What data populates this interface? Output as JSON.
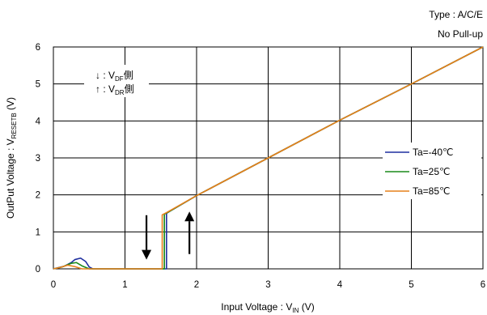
{
  "chart_data": {
    "type": "line",
    "title": "",
    "annotation_top_right": [
      "Type : A/C/E",
      "No Pull-up"
    ],
    "xlabel": "Input Voltage : V",
    "xlabel_sub": "IN",
    "xlabel_unit": " (V)",
    "ylabel": "OutPut Voltage : V",
    "ylabel_sub": "RESETB",
    "ylabel_unit": " (V)",
    "xlim": [
      0,
      6
    ],
    "ylim": [
      0,
      6
    ],
    "xticks": [
      "0",
      "1",
      "2",
      "3",
      "4",
      "5",
      "6"
    ],
    "yticks": [
      "0",
      "1",
      "2",
      "3",
      "4",
      "5",
      "6"
    ],
    "grid": true,
    "legend_position": "right",
    "direction_notes": [
      {
        "arrow": "↓",
        "prefix": " : V",
        "sub": "DF",
        "suffix": "側"
      },
      {
        "arrow": "↑",
        "prefix": " : V",
        "sub": "DR",
        "suffix": "側"
      }
    ],
    "series": [
      {
        "name": "Ta=-40℃",
        "color": "#1f2f9f",
        "x": [
          0,
          0.15,
          0.25,
          0.3,
          0.38,
          0.45,
          0.5,
          0.55,
          1.0,
          1.58,
          1.58,
          1.62,
          2.0,
          3.0,
          4.0,
          5.0,
          6.0
        ],
        "y": [
          0,
          0.07,
          0.17,
          0.25,
          0.29,
          0.2,
          0.05,
          0,
          0,
          0,
          1.5,
          1.55,
          1.98,
          3.0,
          4.02,
          5.0,
          6.0
        ]
      },
      {
        "name": "Ta=25℃",
        "color": "#1a8a1a",
        "x": [
          0,
          0.12,
          0.25,
          0.32,
          0.4,
          0.5,
          1.0,
          1.55,
          1.55,
          1.6,
          2.0,
          3.0,
          4.0,
          5.0,
          6.0
        ],
        "y": [
          0,
          0.05,
          0.15,
          0.17,
          0.08,
          0,
          0,
          0,
          1.48,
          1.53,
          1.98,
          3.0,
          4.02,
          5.0,
          6.0
        ]
      },
      {
        "name": "Ta=85℃",
        "color": "#e6801a",
        "x": [
          0,
          0.1,
          0.2,
          0.3,
          0.4,
          1.0,
          1.52,
          1.52,
          1.58,
          2.0,
          3.0,
          4.0,
          5.0,
          6.0
        ],
        "y": [
          0,
          0.04,
          0.1,
          0.06,
          0,
          0,
          0,
          1.46,
          1.52,
          1.98,
          3.0,
          4.02,
          5.0,
          6.0
        ]
      }
    ],
    "arrows": [
      {
        "direction": "down",
        "x": 1.3,
        "y_from": 1.45,
        "y_to": 0.25
      },
      {
        "direction": "up",
        "x": 1.9,
        "y_from": 0.4,
        "y_to": 1.55
      }
    ]
  }
}
